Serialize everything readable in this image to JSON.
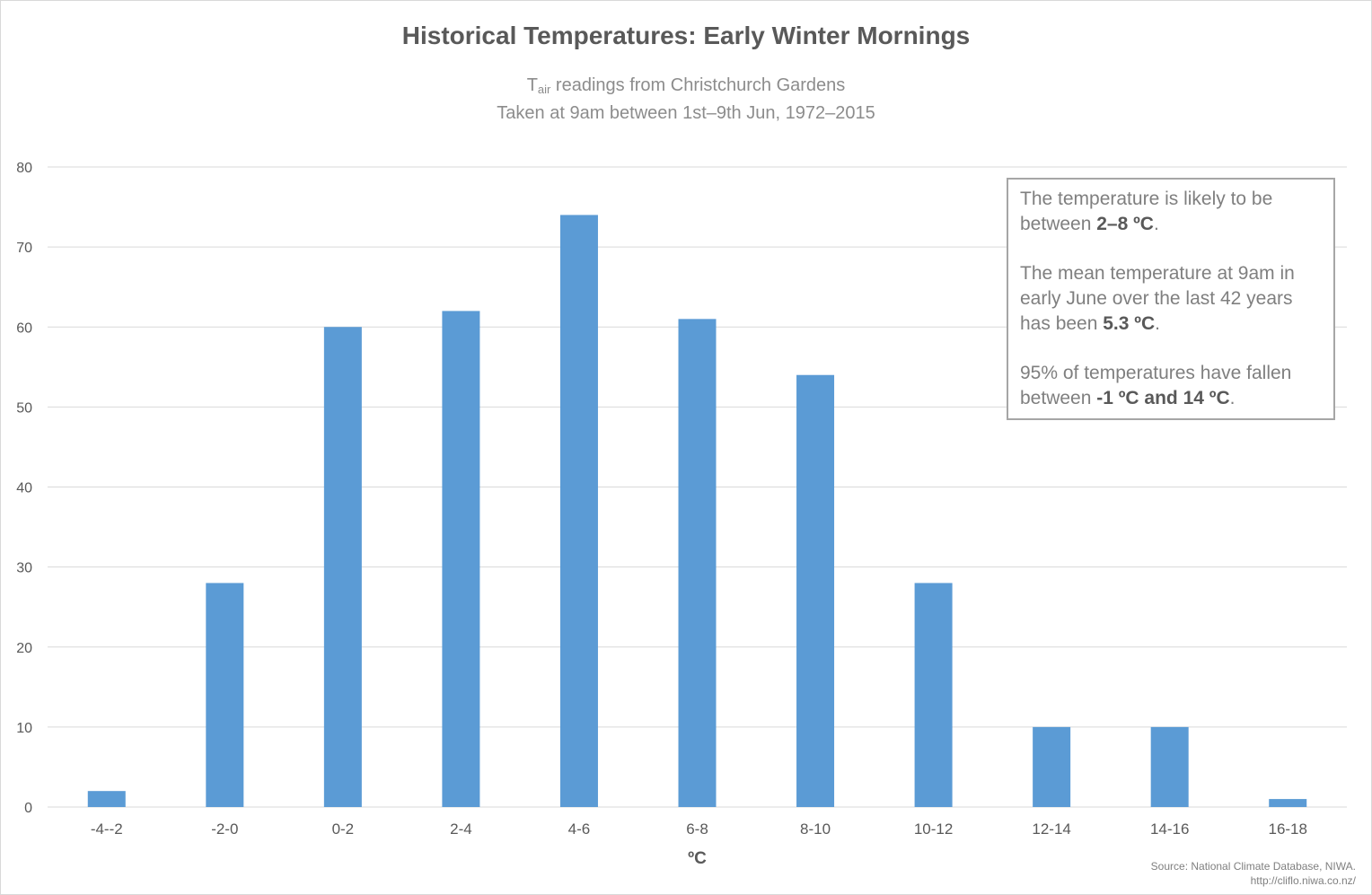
{
  "title": "Historical Temperatures: Early Winter Mornings",
  "subtitle": {
    "t": "T",
    "sub": "air",
    "line1_rest": " readings from Christchurch Gardens",
    "line2": "Taken at 9am between 1st–9th Jun, 1972–2015"
  },
  "annotation": {
    "p1_a": "The temperature is likely to be between ",
    "p1_b": "2–8 ºC",
    "p1_c": ".",
    "p2_a": "The mean temperature at 9am in early June over the last 42 years has been ",
    "p2_b": "5.3 ºC",
    "p2_c": ".",
    "p3_a": "95% of temperatures have fallen between ",
    "p3_b": "-1 ºC and 14 ºC",
    "p3_c": "."
  },
  "source": {
    "line1": "Source: National Climate Database, NIWA.",
    "line2": "http://cliflo.niwa.co.nz/"
  },
  "colors": {
    "bar": "#5b9bd5",
    "grid": "#d9d9d9",
    "axis_text": "#595959"
  },
  "chart_data": {
    "type": "bar",
    "title": "Historical Temperatures: Early Winter Mornings",
    "xlabel": "ºC",
    "ylabel": "",
    "categories": [
      "-4--2",
      "-2-0",
      "0-2",
      "2-4",
      "4-6",
      "6-8",
      "8-10",
      "10-12",
      "12-14",
      "14-16",
      "16-18"
    ],
    "values": [
      2,
      28,
      60,
      62,
      74,
      61,
      54,
      28,
      10,
      10,
      1
    ],
    "ylim": [
      0,
      80
    ],
    "yticks": [
      0,
      10,
      20,
      30,
      40,
      50,
      60,
      70,
      80
    ],
    "grid": true,
    "legend": "none"
  }
}
